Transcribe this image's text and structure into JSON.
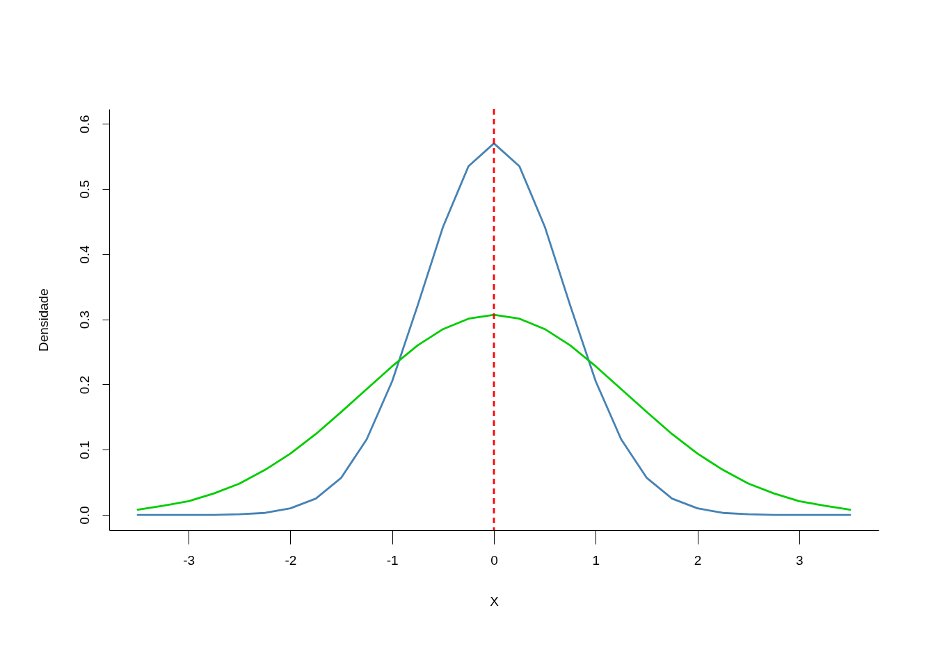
{
  "chart_data": {
    "type": "line",
    "xlabel": "X",
    "ylabel": "Densidade",
    "x": [
      -3.5,
      -3.25,
      -3,
      -2.75,
      -2.5,
      -2.25,
      -2,
      -1.75,
      -1.5,
      -1.25,
      -1,
      -0.75,
      -0.5,
      -0.25,
      0,
      0.25,
      0.5,
      0.75,
      1,
      1.25,
      1.5,
      1.75,
      2,
      2.25,
      2.5,
      2.75,
      3,
      3.25,
      3.5
    ],
    "series": [
      {
        "color": "#4682b4",
        "values": [
          0,
          0,
          0,
          0,
          0.001,
          0.003,
          0.01,
          0.025,
          0.057,
          0.116,
          0.205,
          0.321,
          0.442,
          0.535,
          0.57,
          0.535,
          0.442,
          0.321,
          0.205,
          0.116,
          0.057,
          0.025,
          0.01,
          0.003,
          0.001,
          0,
          0,
          0,
          0
        ]
      },
      {
        "color": "#00cd00",
        "values": [
          0.008,
          0.014,
          0.021,
          0.033,
          0.048,
          0.069,
          0.094,
          0.124,
          0.158,
          0.193,
          0.228,
          0.26,
          0.285,
          0.301,
          0.307,
          0.301,
          0.285,
          0.26,
          0.228,
          0.193,
          0.158,
          0.124,
          0.094,
          0.069,
          0.048,
          0.033,
          0.021,
          0.014,
          0.008
        ]
      }
    ],
    "ref_lines": [
      {
        "axis": "x",
        "value": 0,
        "color": "#ff0000",
        "line_style": "dashed"
      }
    ],
    "xlim": [
      -3.78,
      3.78
    ],
    "ylim": [
      -0.0234,
      0.6226
    ],
    "xticks": [
      -3,
      -2,
      -1,
      0,
      1,
      2,
      3
    ],
    "yticks": [
      {
        "value": 0,
        "label": "0.0"
      },
      0.1,
      0.2,
      0.3,
      0.4,
      0.5,
      0.6
    ],
    "grid": false,
    "legend": false,
    "marker": "none",
    "line_style": "solid"
  }
}
